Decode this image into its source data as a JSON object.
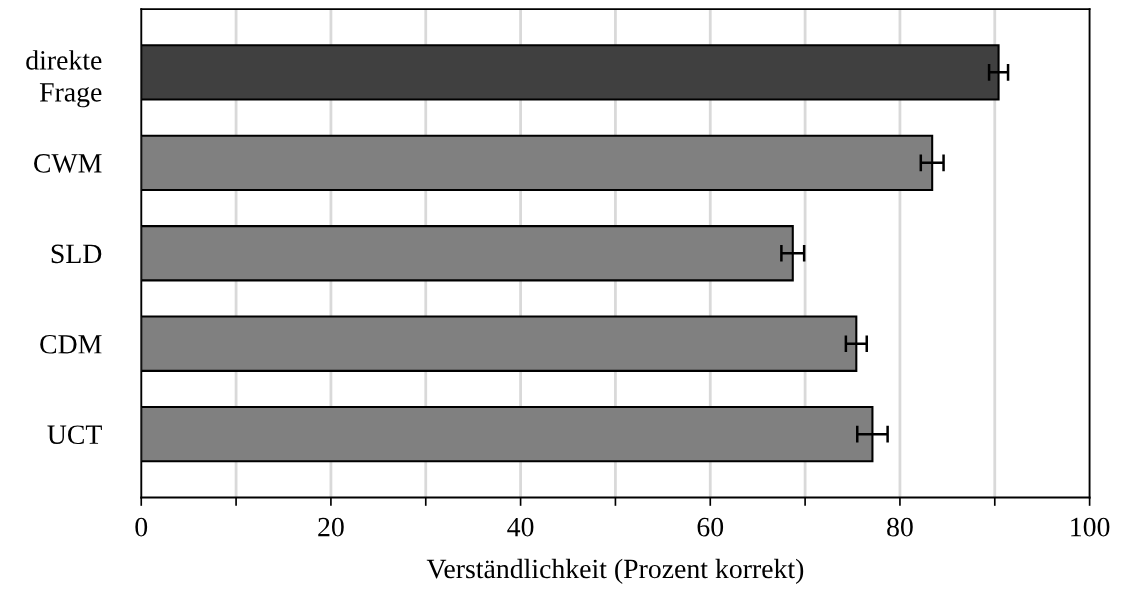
{
  "chart_data": {
    "type": "bar",
    "orientation": "horizontal",
    "xlabel": "Verständlichkeit (Prozent korrekt)",
    "categories": [
      "direkte\nFrage",
      "CWM",
      "SLD",
      "CDM",
      "UCT"
    ],
    "values": [
      90.4,
      83.4,
      68.7,
      75.4,
      77.1
    ],
    "errors": [
      1.0,
      1.2,
      1.2,
      1.1,
      1.6
    ],
    "colors": [
      "#404040",
      "#808080",
      "#808080",
      "#808080",
      "#808080"
    ],
    "xlim": [
      0,
      100
    ],
    "xticks": [
      0,
      {
        "value": 10,
        "label": null
      },
      20,
      {
        "value": 30,
        "label": null
      },
      40,
      {
        "value": 50,
        "label": null
      },
      60,
      {
        "value": 70,
        "label": null
      },
      80,
      {
        "value": 90,
        "label": null
      },
      100
    ],
    "grid": "x",
    "legend": false
  }
}
